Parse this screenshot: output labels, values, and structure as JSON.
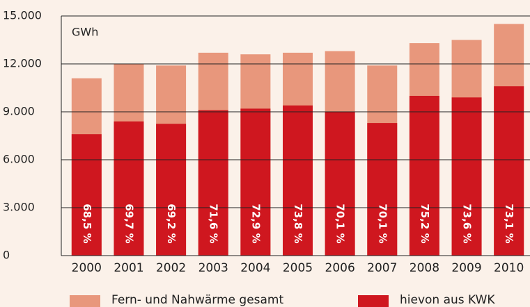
{
  "chart_data": {
    "type": "bar",
    "unit": "GWh",
    "categories": [
      "2000",
      "2001",
      "2002",
      "2003",
      "2004",
      "2005",
      "2006",
      "2007",
      "2008",
      "2009",
      "2010"
    ],
    "series": [
      {
        "name": "Fern- und Nahwärme gesamt",
        "color": "#e8977c",
        "values": [
          11100,
          12000,
          11900,
          12700,
          12600,
          12700,
          12800,
          11900,
          13300,
          13500,
          14500
        ]
      },
      {
        "name": "hievon aus KWK",
        "color": "#cf171f",
        "values": [
          7600,
          8400,
          8250,
          9100,
          9200,
          9400,
          9000,
          8300,
          10000,
          9900,
          10600
        ],
        "percent_labels": [
          "68,5 %",
          "69,7 %",
          "69,2 %",
          "71,6 %",
          "72,9 %",
          "73,8 %",
          "70,1 %",
          "70,1 %",
          "75,2 %",
          "73,6 %",
          "73,1 %"
        ]
      }
    ],
    "overlap": true,
    "ylim": [
      0,
      15000
    ],
    "yticks": [
      0,
      {
        "value": 3000,
        "label": "3.000"
      },
      {
        "value": 6000,
        "label": "6.000"
      },
      {
        "value": 9000,
        "label": "9.000"
      },
      {
        "value": 12000,
        "label": "12.000"
      },
      {
        "value": 15000,
        "label": "15.000"
      }
    ],
    "grid": true
  }
}
